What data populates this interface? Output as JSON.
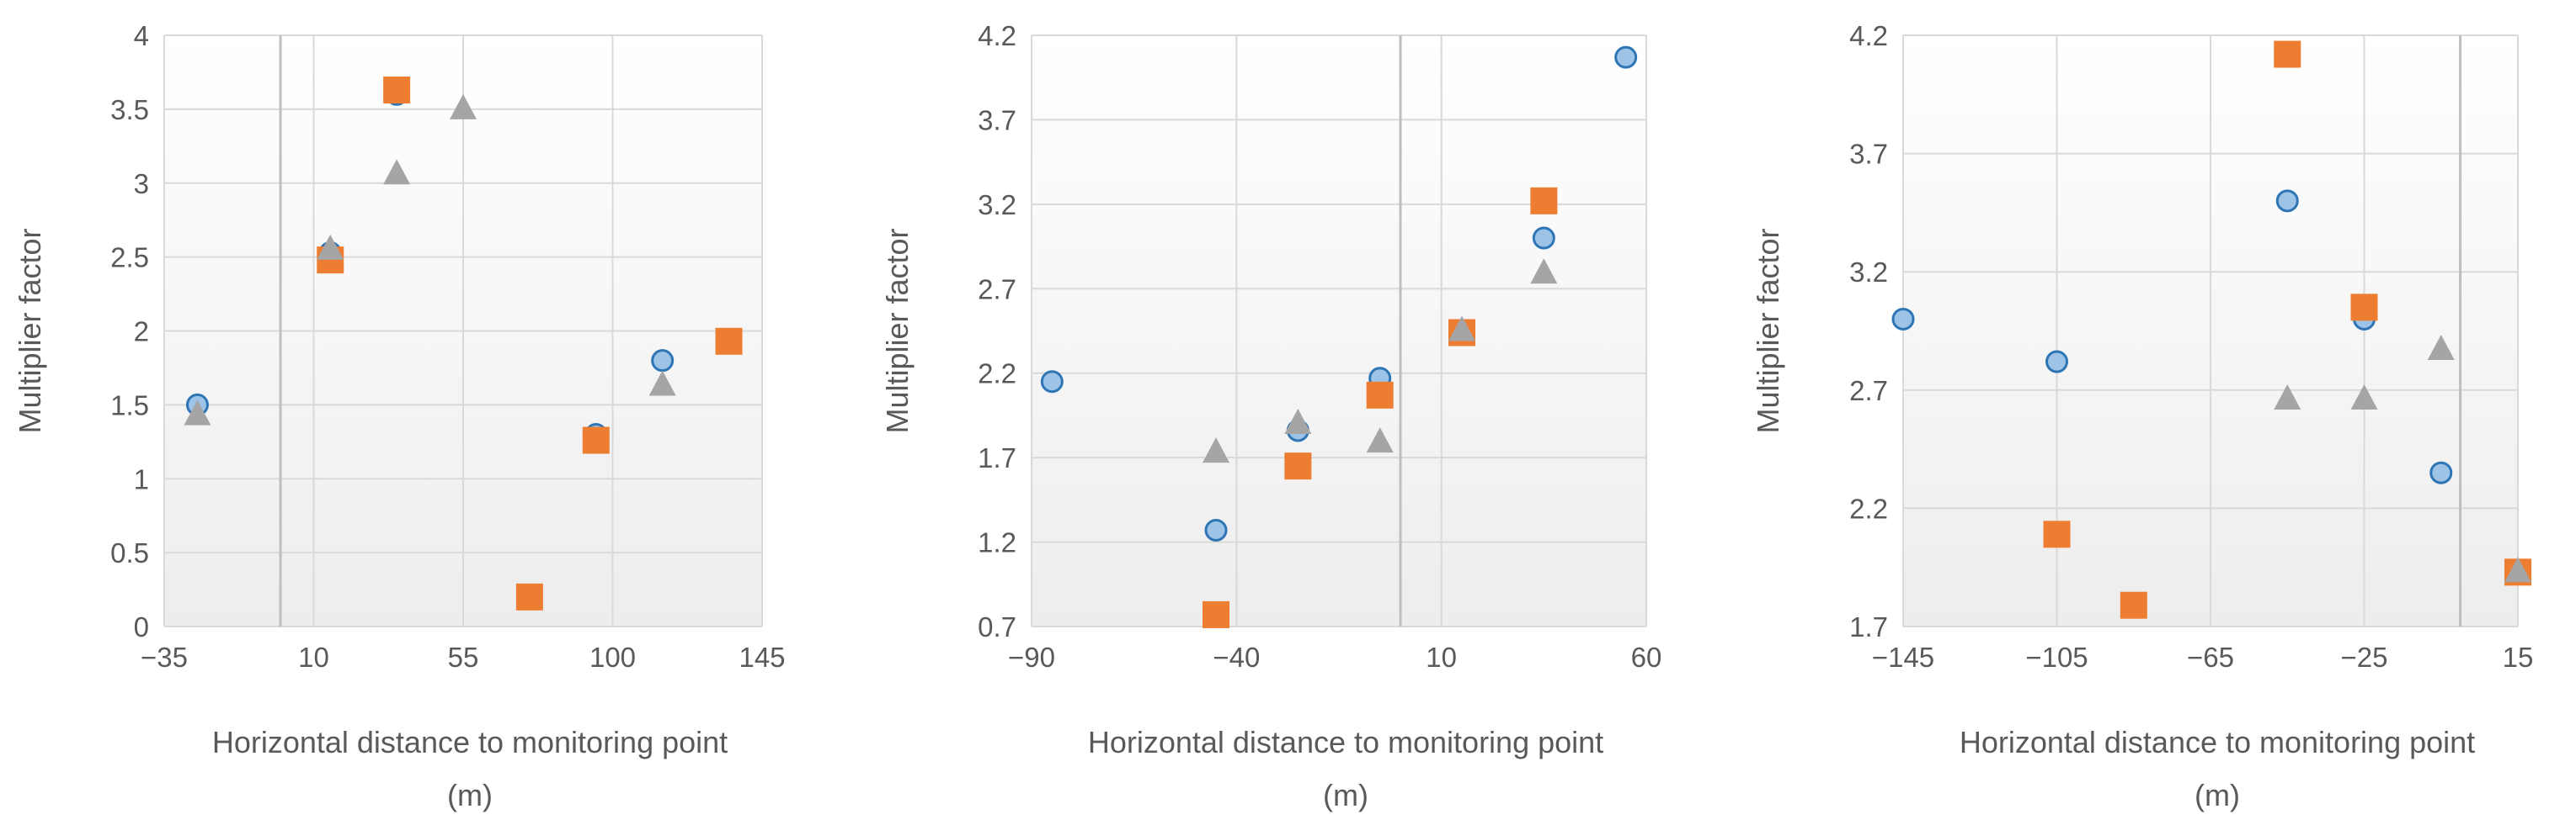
{
  "colors": {
    "series_circle": "#9DC3E6",
    "series_circle_edge": "#2E75B6",
    "series_square": "#ED7D31",
    "series_triangle": "#A5A5A5",
    "gridline": "#D9D9D9",
    "axis_zero_line": "#BFBFBF",
    "plot_bg_top": "#FFFFFF",
    "plot_bg_bottom": "#EDEDED",
    "text": "#595959"
  },
  "chart_data": [
    {
      "type": "scatter",
      "xlabel_line1": "Horizontal distance to monitoring point",
      "xlabel_line2": "(m)",
      "ylabel": "Multiplier factor",
      "xlim": [
        -35,
        145
      ],
      "ylim": [
        0,
        4
      ],
      "xticks": [
        -35,
        10,
        55,
        100,
        145
      ],
      "yticks": [
        0,
        0.5,
        1,
        1.5,
        2,
        2.5,
        3,
        3.5,
        4
      ],
      "xtick_labels": [
        "−35",
        "10",
        "55",
        "100",
        "145"
      ],
      "ytick_labels": [
        "0",
        "0.5",
        "1",
        "1.5",
        "2",
        "2.5",
        "3",
        "3.5",
        "4"
      ],
      "grid": true,
      "zero_line_x": 0,
      "series": [
        {
          "marker": "circle",
          "points": [
            [
              -25,
              1.5
            ],
            [
              15,
              2.53
            ],
            [
              35,
              3.6
            ],
            [
              95,
              1.3
            ],
            [
              115,
              1.8
            ]
          ]
        },
        {
          "marker": "square",
          "points": [
            [
              15,
              2.48
            ],
            [
              35,
              3.63
            ],
            [
              75,
              0.2
            ],
            [
              95,
              1.26
            ],
            [
              135,
              1.93
            ]
          ]
        },
        {
          "marker": "triangle",
          "points": [
            [
              -25,
              1.43
            ],
            [
              15,
              2.55
            ],
            [
              35,
              3.06
            ],
            [
              55,
              3.5
            ],
            [
              115,
              1.63
            ]
          ]
        }
      ]
    },
    {
      "type": "scatter",
      "xlabel_line1": "Horizontal distance to monitoring point",
      "xlabel_line2": "(m)",
      "ylabel": "Multiplier factor",
      "xlim": [
        -90,
        60
      ],
      "ylim": [
        0.7,
        4.2
      ],
      "xticks": [
        -90,
        -40,
        10,
        60
      ],
      "yticks": [
        0.7,
        1.2,
        1.7,
        2.2,
        2.7,
        3.2,
        3.7,
        4.2
      ],
      "xtick_labels": [
        "−90",
        "−40",
        "10",
        "60"
      ],
      "ytick_labels": [
        "0.7",
        "1.2",
        "1.7",
        "2.2",
        "2.7",
        "3.2",
        "3.7",
        "4.2"
      ],
      "grid": true,
      "zero_line_x": 0,
      "series": [
        {
          "marker": "circle",
          "points": [
            [
              -85,
              2.15
            ],
            [
              -45,
              1.27
            ],
            [
              -25,
              1.86
            ],
            [
              -5,
              2.17
            ],
            [
              15,
              2.45
            ],
            [
              35,
              3.0
            ],
            [
              55,
              4.07
            ]
          ]
        },
        {
          "marker": "square",
          "points": [
            [
              -45,
              0.77
            ],
            [
              -25,
              1.65
            ],
            [
              -5,
              2.07
            ],
            [
              15,
              2.44
            ],
            [
              35,
              3.22
            ]
          ]
        },
        {
          "marker": "triangle",
          "points": [
            [
              -45,
              1.73
            ],
            [
              -25,
              1.9
            ],
            [
              -5,
              1.79
            ],
            [
              15,
              2.45
            ],
            [
              35,
              2.79
            ]
          ]
        }
      ]
    },
    {
      "type": "scatter",
      "xlabel_line1": "Horizontal distance to monitoring point",
      "xlabel_line2": "(m)",
      "ylabel": "Multiplier factor",
      "xlim": [
        -145,
        15
      ],
      "ylim": [
        1.7,
        4.2
      ],
      "xticks": [
        -145,
        -105,
        -65,
        -25,
        15
      ],
      "yticks": [
        1.7,
        2.2,
        2.7,
        3.2,
        3.7,
        4.2
      ],
      "xtick_labels": [
        "−145",
        "−105",
        "−65",
        "−25",
        "15"
      ],
      "ytick_labels": [
        "1.7",
        "2.2",
        "2.7",
        "3.2",
        "3.7",
        "4.2"
      ],
      "grid": true,
      "zero_line_x": 0,
      "series": [
        {
          "marker": "circle",
          "points": [
            [
              -145,
              3.0
            ],
            [
              -105,
              2.82
            ],
            [
              -45,
              3.5
            ],
            [
              -25,
              3.0
            ],
            [
              -5,
              2.35
            ]
          ]
        },
        {
          "marker": "square",
          "points": [
            [
              -105,
              2.09
            ],
            [
              -85,
              1.79
            ],
            [
              -45,
              4.12
            ],
            [
              -25,
              3.05
            ],
            [
              15,
              1.93
            ]
          ]
        },
        {
          "marker": "triangle",
          "points": [
            [
              -45,
              2.66
            ],
            [
              -25,
              2.66
            ],
            [
              -5,
              2.87
            ],
            [
              15,
              1.93
            ]
          ]
        }
      ]
    }
  ]
}
